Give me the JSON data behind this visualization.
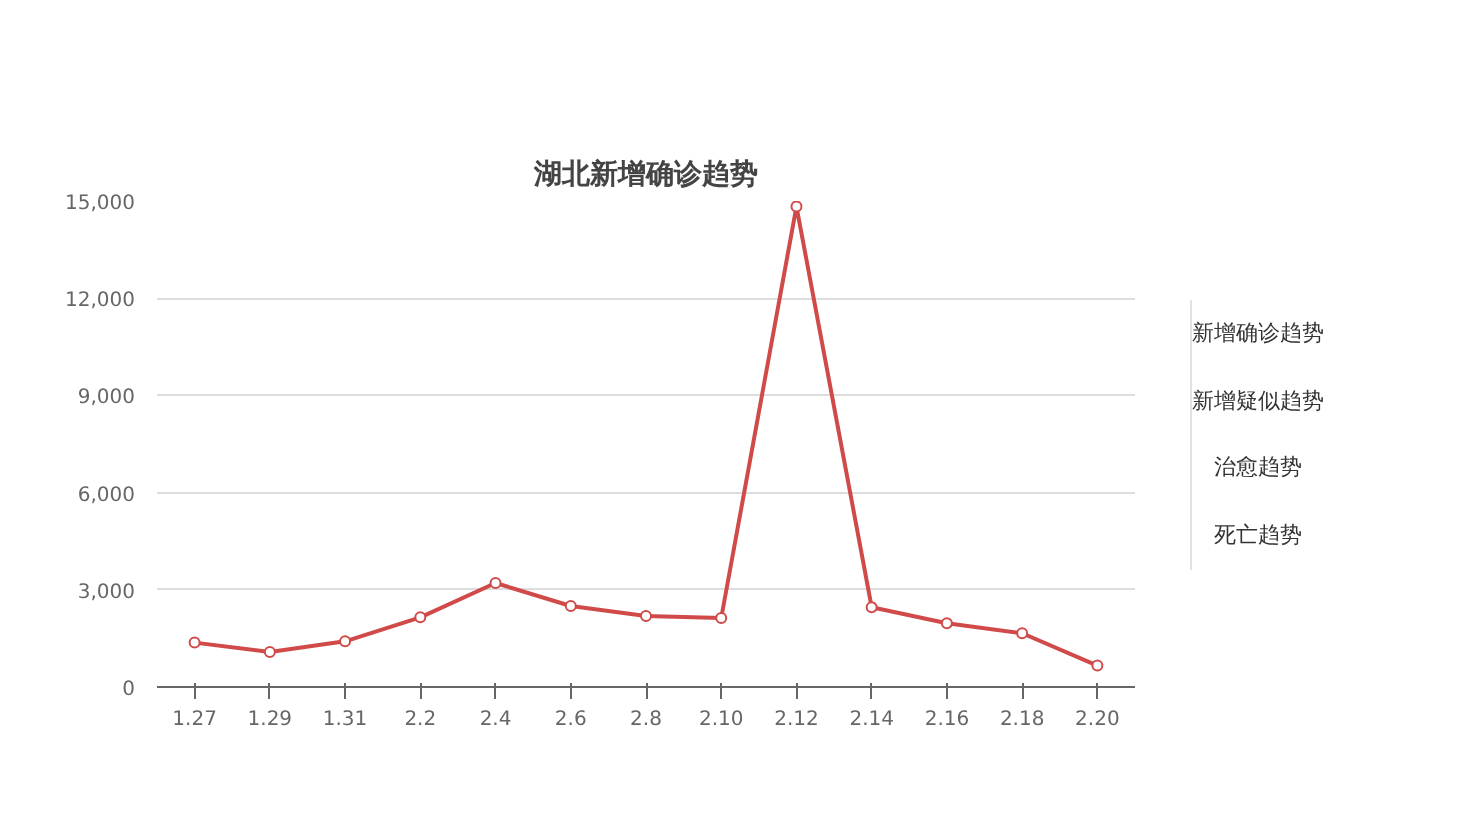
{
  "chart_data": {
    "type": "line",
    "title": "湖北新增确诊趋势",
    "categories": [
      "1.27",
      "1.29",
      "1.31",
      "2.2",
      "2.4",
      "2.6",
      "2.8",
      "2.10",
      "2.12",
      "2.14",
      "2.16",
      "2.18",
      "2.20"
    ],
    "series": [
      {
        "color": "#d14a4a",
        "values": [
          1370,
          1080,
          1410,
          2150,
          3210,
          2500,
          2190,
          2130,
          14830,
          2460,
          1970,
          1660,
          660
        ]
      }
    ],
    "ylim": [
      0,
      15000
    ],
    "yticks": [
      {
        "value": 0,
        "label": "0"
      },
      {
        "value": 3000,
        "label": "3,000"
      },
      {
        "value": 6000,
        "label": "6,000"
      },
      {
        "value": 9000,
        "label": "9,000"
      },
      {
        "value": 12000,
        "label": "12,000"
      },
      {
        "value": 15000,
        "label": "15,000"
      }
    ],
    "grid": "y",
    "marker": "circle",
    "line_style": "solid",
    "annotations": [
      "新增确诊趋势",
      "新增疑似趋势",
      "治愈趋势",
      "死亡趋势"
    ]
  }
}
